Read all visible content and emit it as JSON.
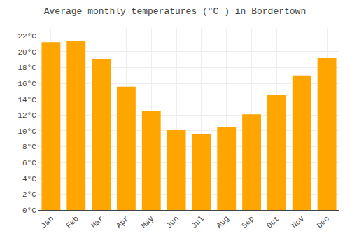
{
  "chart_data": {
    "type": "bar",
    "title": "Average monthly temperatures (°C ) in Bordertown",
    "categories": [
      "Jan",
      "Feb",
      "Mar",
      "Apr",
      "May",
      "Jun",
      "Jul",
      "Aug",
      "Sep",
      "Oct",
      "Nov",
      "Dec"
    ],
    "values": [
      21.2,
      21.4,
      19.1,
      15.6,
      12.5,
      10.1,
      9.6,
      10.5,
      12.1,
      14.5,
      17.0,
      19.2
    ],
    "color": "#FFA500",
    "ylim": [
      0,
      23
    ],
    "yticks": [
      {
        "value": 0,
        "label": "0°C"
      },
      {
        "value": 2,
        "label": "2°C"
      },
      {
        "value": 4,
        "label": "4°C"
      },
      {
        "value": 6,
        "label": "6°C"
      },
      {
        "value": 8,
        "label": "8°C"
      },
      {
        "value": 10,
        "label": "10°C"
      },
      {
        "value": 12,
        "label": "12°C"
      },
      {
        "value": 14,
        "label": "14°C"
      },
      {
        "value": 16,
        "label": "16°C"
      },
      {
        "value": 18,
        "label": "18°C"
      },
      {
        "value": 20,
        "label": "20°C"
      },
      {
        "value": 22,
        "label": "22°C"
      }
    ],
    "grid": true
  }
}
